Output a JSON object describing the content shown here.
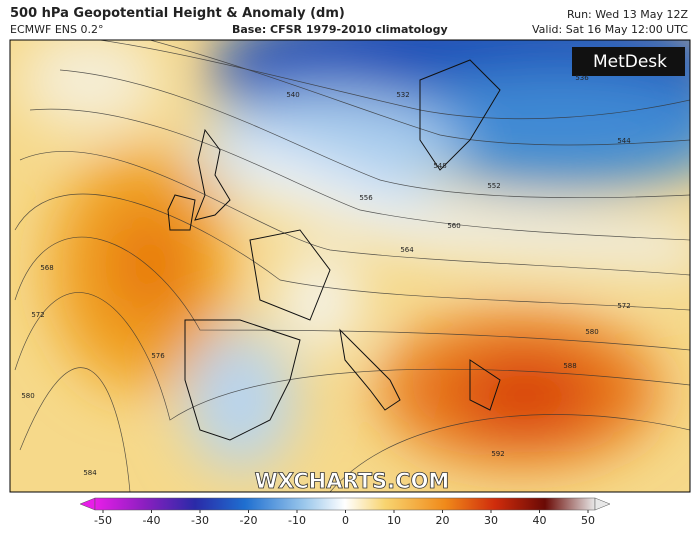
{
  "header": {
    "title": "500 hPa Geopotential Height & Anomaly (dm)",
    "model": "ECMWF ENS 0.2°",
    "base": "Base: CFSR 1979-2010 climatology",
    "run": "Run: Wed 13 May 12Z",
    "valid": "Valid: Sat 16 May 12:00 UTC"
  },
  "logo": "MetDesk",
  "watermark": "WXCHARTS.COM",
  "contour_labels": [
    "540",
    "532",
    "536",
    "544",
    "548",
    "552",
    "556",
    "560",
    "564",
    "568",
    "572",
    "576",
    "580",
    "584",
    "588",
    "592",
    "572",
    "580"
  ],
  "colorbar": {
    "lim": [
      -50,
      50
    ],
    "ticks": [
      -50,
      -40,
      -30,
      -20,
      -10,
      0,
      10,
      20,
      30,
      40,
      50
    ]
  }
}
